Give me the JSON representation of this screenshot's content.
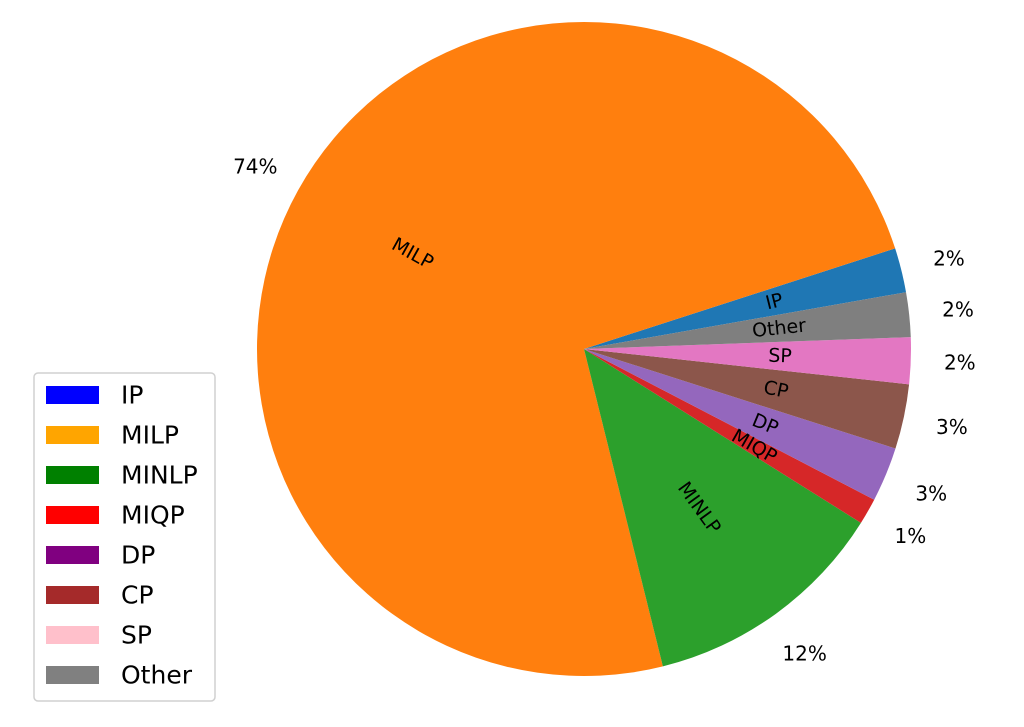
{
  "chart_data": {
    "type": "pie",
    "title": "",
    "slices": [
      {
        "label": "IP",
        "value": 2.2,
        "pct_label": "2%",
        "color": "#1f77b4"
      },
      {
        "label": "MILP",
        "value": 73.9,
        "pct_label": "74%",
        "color": "#ff7f0e"
      },
      {
        "label": "MINLP",
        "value": 12.2,
        "pct_label": "12%",
        "color": "#2ca02c"
      },
      {
        "label": "MIQP",
        "value": 1.3,
        "pct_label": "1%",
        "color": "#d62728"
      },
      {
        "label": "DP",
        "value": 2.7,
        "pct_label": "3%",
        "color": "#9467bd"
      },
      {
        "label": "CP",
        "value": 3.2,
        "pct_label": "3%",
        "color": "#8c564b"
      },
      {
        "label": "SP",
        "value": 2.3,
        "pct_label": "2%",
        "color": "#e377c2"
      },
      {
        "label": "Other",
        "value": 2.2,
        "pct_label": "2%",
        "color": "#7f7f7f"
      }
    ],
    "legend": {
      "placement": "lower-left",
      "entries": [
        {
          "label": "IP",
          "color": "#0000ff"
        },
        {
          "label": "MILP",
          "color": "#ffa500"
        },
        {
          "label": "MINLP",
          "color": "#008000"
        },
        {
          "label": "MIQP",
          "color": "#ff0000"
        },
        {
          "label": "DP",
          "color": "#800080"
        },
        {
          "label": "CP",
          "color": "#a52a2a"
        },
        {
          "label": "SP",
          "color": "#ffc0cb"
        },
        {
          "label": "Other",
          "color": "#808080"
        }
      ]
    }
  }
}
